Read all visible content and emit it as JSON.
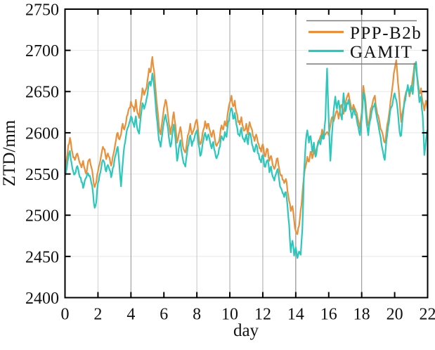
{
  "chart_data": {
    "type": "line",
    "title": "",
    "xlabel": "day",
    "ylabel": "ZTD/mm",
    "xlim": [
      0,
      22
    ],
    "ylim": [
      2400,
      2750
    ],
    "xticks": [
      0,
      2,
      4,
      6,
      8,
      10,
      12,
      14,
      16,
      18,
      20,
      22
    ],
    "yticks": [
      2400,
      2450,
      2500,
      2550,
      2600,
      2650,
      2700,
      2750
    ],
    "x_step": 0.1,
    "grid": {
      "vertical": [
        {
          "day": 2,
          "color": "#d2d2d2"
        },
        {
          "day": 4,
          "color": "#8f8f8f"
        },
        {
          "day": 8,
          "color": "#c6c6c6"
        },
        {
          "day": 10,
          "color": "#a6a6a6"
        },
        {
          "day": 12,
          "color": "#a6a6a6"
        },
        {
          "day": 14,
          "color": "#787878"
        },
        {
          "day": 18,
          "color": "#8a8a8a"
        }
      ],
      "horizontal_values": [
        2450,
        2500,
        2550,
        2600,
        2650,
        2700
      ],
      "horizontal_color": "#e8e8e8"
    },
    "legend": {
      "position": "top-right",
      "rule_color": "#7a7a7a",
      "entries": [
        "PPP-B2b",
        "GAMIT"
      ]
    },
    "axis_color": "#000000",
    "line_width": 2.2,
    "jitter_mm": 3.2,
    "series": [
      {
        "name": "PPP-B2b",
        "color": "#e8913c",
        "values": [
          2551,
          2568,
          2585,
          2594,
          2580,
          2570,
          2567,
          2574,
          2571,
          2563,
          2558,
          2566,
          2556,
          2550,
          2565,
          2568,
          2558,
          2546,
          2534,
          2540,
          2553,
          2562,
          2573,
          2583,
          2580,
          2568,
          2575,
          2570,
          2560,
          2571,
          2580,
          2592,
          2600,
          2592,
          2598,
          2611,
          2604,
          2612,
          2622,
          2630,
          2638,
          2632,
          2626,
          2640,
          2624,
          2618,
          2638,
          2654,
          2646,
          2652,
          2663,
          2678,
          2674,
          2692,
          2676,
          2652,
          2630,
          2607,
          2598,
          2614,
          2630,
          2640,
          2629,
          2612,
          2598,
          2610,
          2625,
          2609,
          2588,
          2598,
          2607,
          2592,
          2580,
          2576,
          2589,
          2599,
          2611,
          2598,
          2603,
          2611,
          2616,
          2598,
          2586,
          2592,
          2604,
          2614,
          2605,
          2611,
          2602,
          2595,
          2603,
          2591,
          2584,
          2588,
          2596,
          2609,
          2604,
          2614,
          2608,
          2627,
          2637,
          2645,
          2632,
          2639,
          2625,
          2613,
          2610,
          2619,
          2607,
          2603,
          2611,
          2598,
          2613,
          2606,
          2596,
          2590,
          2598,
          2588,
          2581,
          2577,
          2586,
          2572,
          2576,
          2580,
          2566,
          2572,
          2561,
          2556,
          2563,
          2569,
          2556,
          2548,
          2543,
          2539,
          2544,
          2529,
          2517,
          2505,
          2511,
          2494,
          2481,
          2477,
          2487,
          2506,
          2526,
          2547,
          2559,
          2571,
          2565,
          2577,
          2569,
          2579,
          2574,
          2583,
          2590,
          2596,
          2604,
          2593,
          2598,
          2601,
          2597,
          2609,
          2619,
          2614,
          2622,
          2627,
          2617,
          2629,
          2634,
          2623,
          2631,
          2643,
          2648,
          2637,
          2628,
          2634,
          2629,
          2624,
          2614,
          2605,
          2624,
          2657,
          2644,
          2621,
          2609,
          2621,
          2631,
          2640,
          2645,
          2629,
          2621,
          2611,
          2603,
          2596,
          2588,
          2601,
          2614,
          2628,
          2645,
          2661,
          2677,
          2688,
          2661,
          2639,
          2613,
          2627,
          2641,
          2650,
          2656,
          2644,
          2651,
          2667,
          2684,
          2677,
          2664,
          2648,
          2654,
          2637,
          2627,
          2639,
          2629
        ]
      },
      {
        "name": "GAMIT",
        "color": "#2ec7bc",
        "values": [
          2548,
          2556,
          2570,
          2578,
          2563,
          2553,
          2550,
          2558,
          2556,
          2546,
          2540,
          2533,
          2542,
          2546,
          2551,
          2548,
          2539,
          2527,
          2509,
          2516,
          2539,
          2549,
          2558,
          2567,
          2563,
          2553,
          2561,
          2555,
          2546,
          2557,
          2567,
          2575,
          2583,
          2560,
          2535,
          2562,
          2584,
          2596,
          2606,
          2612,
          2620,
          2613,
          2607,
          2620,
          2604,
          2599,
          2620,
          2636,
          2629,
          2636,
          2646,
          2661,
          2657,
          2672,
          2657,
          2634,
          2613,
          2591,
          2583,
          2598,
          2613,
          2622,
          2611,
          2595,
          2583,
          2596,
          2610,
          2593,
          2566,
          2581,
          2591,
          2574,
          2563,
          2559,
          2575,
          2586,
          2597,
          2584,
          2590,
          2598,
          2603,
          2586,
          2572,
          2579,
          2591,
          2600,
          2591,
          2598,
          2589,
          2581,
          2589,
          2577,
          2569,
          2574,
          2583,
          2596,
          2591,
          2601,
          2595,
          2613,
          2623,
          2630,
          2617,
          2624,
          2610,
          2598,
          2596,
          2606,
          2593,
          2589,
          2598,
          2586,
          2600,
          2593,
          2583,
          2577,
          2586,
          2575,
          2568,
          2564,
          2573,
          2559,
          2563,
          2567,
          2552,
          2559,
          2547,
          2542,
          2550,
          2556,
          2542,
          2533,
          2527,
          2522,
          2528,
          2511,
          2488,
          2455,
          2469,
          2451,
          2461,
          2448,
          2456,
          2452,
          2483,
          2551,
          2587,
          2603,
          2588,
          2596,
          2577,
          2588,
          2571,
          2583,
          2591,
          2586,
          2598,
          2593,
          2617,
          2678,
          2616,
          2566,
          2599,
          2627,
          2644,
          2629,
          2639,
          2624,
          2616,
          2648,
          2626,
          2636,
          2640,
          2628,
          2618,
          2629,
          2622,
          2616,
          2607,
          2597,
          2616,
          2649,
          2637,
          2612,
          2597,
          2614,
          2625,
          2632,
          2636,
          2621,
          2611,
          2599,
          2586,
          2576,
          2567,
          2591,
          2607,
          2621,
          2631,
          2639,
          2648,
          2640,
          2624,
          2601,
          2597,
          2621,
          2637,
          2648,
          2658,
          2647,
          2657,
          2647,
          2679,
          2686,
          2659,
          2637,
          2644,
          2621,
          2573,
          2591,
          2604
        ]
      }
    ]
  }
}
